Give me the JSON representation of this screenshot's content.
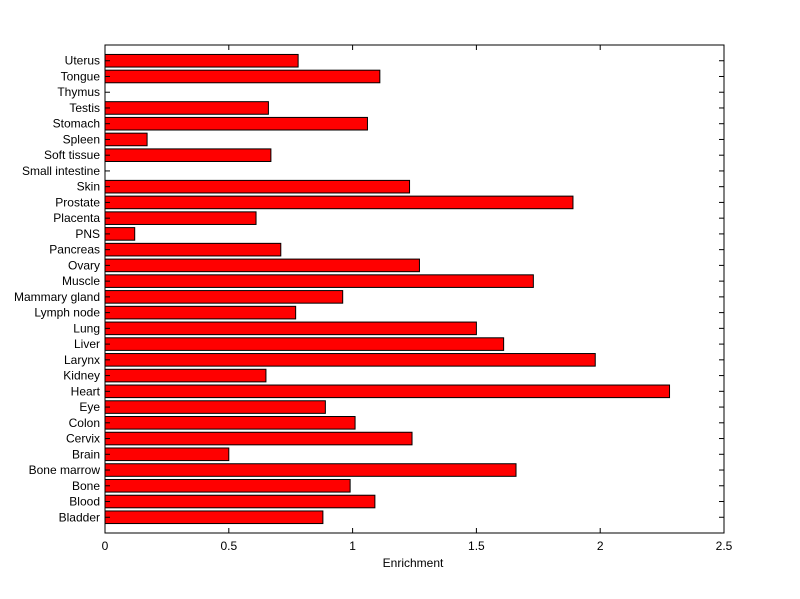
{
  "chart_data": {
    "type": "bar",
    "orientation": "horizontal",
    "title": "",
    "xlabel": "Enrichment",
    "ylabel": "",
    "xlim": [
      0,
      2.5
    ],
    "xticks": [
      "0",
      "0.5",
      "1",
      "1.5",
      "2",
      "2.5"
    ],
    "grid": false,
    "legend": "none",
    "bar_color": "#ff0000",
    "bar_edge_color": "#000000",
    "categories": [
      "Bladder",
      "Blood",
      "Bone",
      "Bone marrow",
      "Brain",
      "Cervix",
      "Colon",
      "Eye",
      "Heart",
      "Kidney",
      "Larynx",
      "Liver",
      "Lung",
      "Lymph node",
      "Mammary gland",
      "Muscle",
      "Ovary",
      "Pancreas",
      "PNS",
      "Placenta",
      "Prostate",
      "Skin",
      "Small intestine",
      "Soft tissue",
      "Spleen",
      "Stomach",
      "Testis",
      "Thymus",
      "Tongue",
      "Uterus"
    ],
    "values": [
      0.88,
      1.09,
      0.99,
      1.66,
      0.5,
      1.24,
      1.01,
      0.89,
      2.28,
      0.65,
      1.98,
      1.61,
      1.5,
      0.77,
      0.96,
      1.73,
      1.27,
      0.71,
      0.12,
      0.61,
      1.89,
      1.23,
      0.0,
      0.67,
      0.17,
      1.06,
      0.66,
      0.0,
      1.11,
      0.78
    ]
  }
}
